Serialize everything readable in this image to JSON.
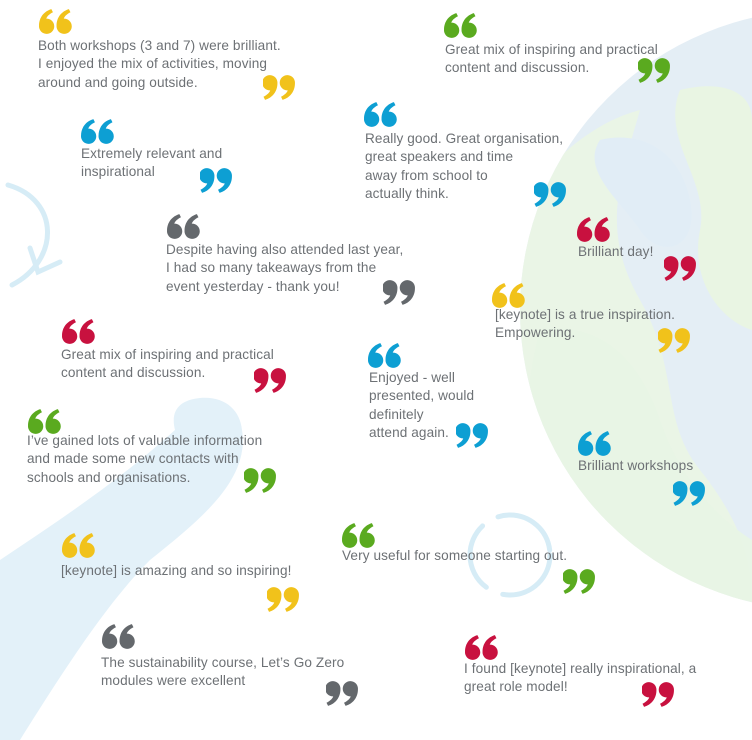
{
  "colors": {
    "yellow": "#f1c21b",
    "green": "#5aaa1f",
    "blue": "#0d9fd3",
    "grey": "#64686c",
    "red": "#c8113f",
    "text": "#6d7175"
  },
  "icons": {
    "open": "open-quote-icon",
    "close": "close-quote-icon",
    "background": "globe-illustration"
  },
  "testimonials": [
    {
      "text": "Both workshops (3 and 7) were brilliant.\nI enjoyed the mix of activities, moving\naround and going outside.",
      "color": "yellow"
    },
    {
      "text": "Great mix of inspiring and practical\ncontent and discussion.",
      "color": "green"
    },
    {
      "text": "Extremely relevant and\ninspirational",
      "color": "blue"
    },
    {
      "text": "Really good. Great organisation,\ngreat speakers and time\naway from school to\nactually think.",
      "color": "blue"
    },
    {
      "text": "Despite having also attended last year,\nI had so many takeaways from the\nevent yesterday - thank you!",
      "color": "grey"
    },
    {
      "text": "Brilliant day!",
      "color": "red"
    },
    {
      "text": "[keynote] is a true inspiration.\nEmpowering.",
      "color": "yellow"
    },
    {
      "text": "Great mix of inspiring and practical\ncontent and discussion.",
      "color": "red"
    },
    {
      "text": "Enjoyed - well\npresented, would\ndefinitely\nattend again.",
      "color": "blue"
    },
    {
      "text": "I’ve gained lots of valuable information\nand made some new contacts with\nschools and organisations.",
      "color": "green"
    },
    {
      "text": "Brilliant workshops",
      "color": "blue"
    },
    {
      "text": "Very useful for someone starting out.",
      "color": "green"
    },
    {
      "text": "[keynote] is amazing and so inspiring!",
      "color": "yellow"
    },
    {
      "text": "The sustainability course, Let’s Go Zero\nmodules were excellent",
      "color": "grey"
    },
    {
      "text": "I found [keynote] really inspirational, a\ngreat role model!",
      "color": "red"
    }
  ]
}
